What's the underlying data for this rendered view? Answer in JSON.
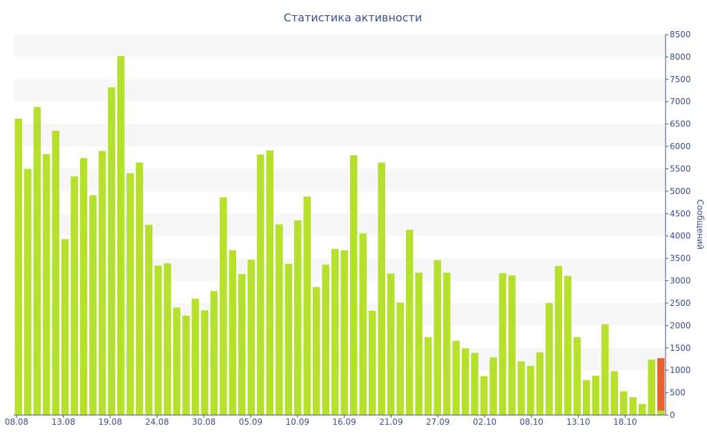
{
  "chart_data": {
    "type": "bar",
    "title": "Статистика активности",
    "xlabel": "",
    "ylabel": "Сообщений",
    "ylim": [
      0,
      8500
    ],
    "y_ticks": [
      0,
      500,
      1000,
      1500,
      2000,
      2500,
      3000,
      3500,
      4000,
      4500,
      5000,
      5500,
      6000,
      6500,
      7000,
      7500,
      8000,
      8500
    ],
    "y_axis_position": "right",
    "grid": "alternating horizontal bands",
    "x_tick_labels": [
      "08.08",
      "13.08",
      "19.08",
      "24.08",
      "30.08",
      "05.09",
      "10.09",
      "16.09",
      "21.09",
      "27.09",
      "02.10",
      "08.10",
      "13.10",
      "18.10"
    ],
    "colors": {
      "bar": "#b5e02c",
      "highlight": "#e8632a",
      "band": "#f7f7f7",
      "axis": "#3b4f8c"
    },
    "series": [
      {
        "values": [
          6620,
          5500,
          6880,
          5830,
          6350,
          3930,
          5330,
          5740,
          4910,
          5900,
          7320,
          8020,
          5400,
          5640,
          4250,
          3340,
          3390,
          2400,
          2220,
          2600,
          2340,
          2770,
          4860,
          3680,
          3150,
          3470,
          5820,
          5910,
          4260,
          3380,
          4350,
          4880,
          2860,
          3360,
          3710,
          3680,
          5800,
          4060,
          2330,
          5640,
          3160,
          2510,
          4140,
          3180,
          1740,
          3460,
          3180,
          1660,
          1490,
          1390,
          870,
          1290,
          3170,
          3120,
          1200,
          1100,
          1400,
          2500,
          3330,
          3110,
          1740,
          780,
          880,
          2030,
          980,
          530,
          400,
          250,
          1240,
          100
        ]
      },
      {
        "values": [
          0,
          0,
          0,
          0,
          0,
          0,
          0,
          0,
          0,
          0,
          0,
          0,
          0,
          0,
          0,
          0,
          0,
          0,
          0,
          0,
          0,
          0,
          0,
          0,
          0,
          0,
          0,
          0,
          0,
          0,
          0,
          0,
          0,
          0,
          0,
          0,
          0,
          0,
          0,
          0,
          0,
          0,
          0,
          0,
          0,
          0,
          0,
          0,
          0,
          0,
          0,
          0,
          0,
          0,
          0,
          0,
          0,
          0,
          0,
          0,
          0,
          0,
          0,
          0,
          0,
          0,
          0,
          0,
          0,
          1170
        ]
      }
    ]
  }
}
